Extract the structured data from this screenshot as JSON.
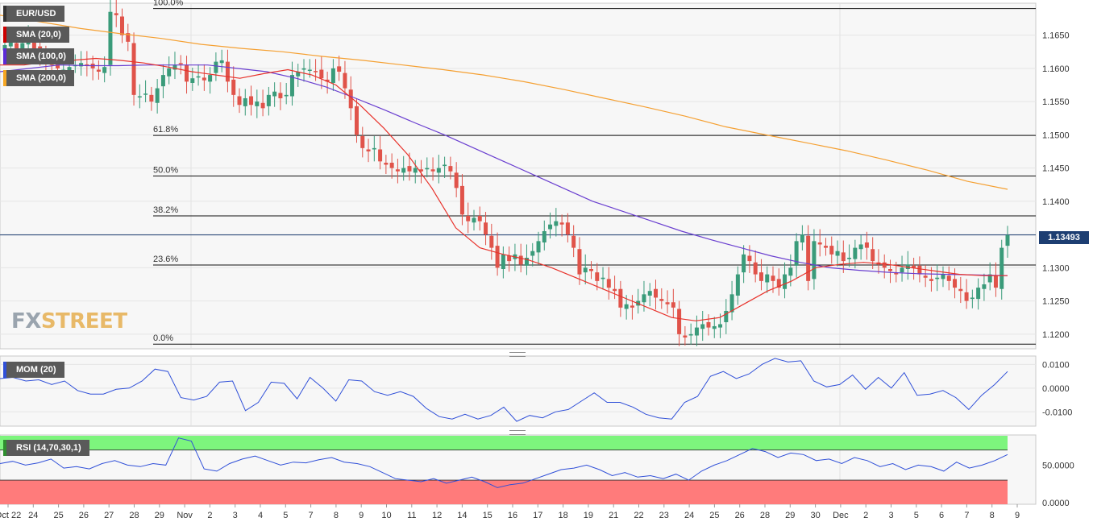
{
  "instrument": "EUR/USD",
  "legends": {
    "main": [
      "EUR/USD",
      "SMA (20,0)",
      "SMA (100,0)",
      "SMA (200,0)"
    ],
    "mom": "MOM (20)",
    "rsi": "RSI (14,70,30,1)"
  },
  "colors": {
    "legend_eurusd": "#333333",
    "legend_sma20": "#cc0000",
    "legend_sma100": "#5b2ad6",
    "legend_sma200": "#f5a623",
    "bull": "#3a9b7a",
    "bear": "#e0534a",
    "sma20": "#e8322b",
    "sma100": "#6a3fd0",
    "sma200": "#f5a032",
    "mom_line": "#2f4fd8",
    "rsi_line": "#2f4fd8",
    "rsi_overbought": "#7df57d",
    "rsi_oversold": "#ff7b7b",
    "price_tag": "#1d3e72"
  },
  "watermark": {
    "fx": "FX",
    "street": "STREET"
  },
  "current_price": "1.13493",
  "fibonacci": [
    {
      "label": "100.0%",
      "price": 1.169
    },
    {
      "label": "61.8%",
      "price": 1.1499
    },
    {
      "label": "50.0%",
      "price": 1.1438
    },
    {
      "label": "38.2%",
      "price": 1.1378
    },
    {
      "label": "23.6%",
      "price": 1.1304
    },
    {
      "label": "0.0%",
      "price": 1.1185
    }
  ],
  "x_axis_labels": [
    "Oct 22",
    "24",
    "25",
    "26",
    "27",
    "28",
    "29",
    "Nov",
    "2",
    "3",
    "4",
    "5",
    "7",
    "8",
    "9",
    "10",
    "11",
    "12",
    "14",
    "15",
    "16",
    "17",
    "18",
    "19",
    "21",
    "22",
    "23",
    "24",
    "25",
    "26",
    "28",
    "29",
    "30",
    "Dec",
    "2",
    "3",
    "5",
    "6",
    "7",
    "8",
    "9"
  ],
  "chart_data": [
    {
      "type": "candlestick",
      "title": "EUR/USD",
      "y_axis_ticks": [
        "1.1650",
        "1.1600",
        "1.1550",
        "1.1500",
        "1.1450",
        "1.1400",
        "1.1350",
        "1.1300",
        "1.1250",
        "1.1200"
      ],
      "ylim": [
        1.1178,
        1.1698
      ],
      "ohlc_path_close": [
        1.1635,
        1.164,
        1.1625,
        1.1638,
        1.1645,
        1.163,
        1.162,
        1.161,
        1.1605,
        1.16,
        1.1598,
        1.1602,
        1.1605,
        1.1608,
        1.1604,
        1.16,
        1.1595,
        1.1602,
        1.1685,
        1.168,
        1.165,
        1.164,
        1.156,
        1.1558,
        1.1562,
        1.155,
        1.157,
        1.159,
        1.16,
        1.1605,
        1.1607,
        1.158,
        1.1585,
        1.1588,
        1.1582,
        1.159,
        1.161,
        1.1612,
        1.158,
        1.156,
        1.1545,
        1.1555,
        1.1545,
        1.155,
        1.154,
        1.156,
        1.1565,
        1.1555,
        1.156,
        1.159,
        1.1595,
        1.16,
        1.1598,
        1.1595,
        1.1585,
        1.158,
        1.16,
        1.1595,
        1.157,
        1.154,
        1.15,
        1.148,
        1.1475,
        1.148,
        1.146,
        1.1455,
        1.145,
        1.1445,
        1.145,
        1.1445,
        1.145,
        1.1445,
        1.145,
        1.1445,
        1.145,
        1.1455,
        1.1445,
        1.142,
        1.138,
        1.137,
        1.1375,
        1.137,
        1.135,
        1.133,
        1.13,
        1.132,
        1.131,
        1.132,
        1.1305,
        1.1315,
        1.1325,
        1.134,
        1.1355,
        1.1365,
        1.137,
        1.1365,
        1.135,
        1.133,
        1.129,
        1.13,
        1.1295,
        1.128,
        1.1285,
        1.127,
        1.1265,
        1.124,
        1.1245,
        1.124,
        1.125,
        1.126,
        1.1265,
        1.1255,
        1.125,
        1.1245,
        1.124,
        1.12,
        1.1195,
        1.12,
        1.121,
        1.1215,
        1.121,
        1.1212,
        1.1215,
        1.1235,
        1.126,
        1.129,
        1.132,
        1.131,
        1.129,
        1.128,
        1.129,
        1.128,
        1.127,
        1.129,
        1.13,
        1.134,
        1.135,
        1.128,
        1.134,
        1.1335,
        1.133,
        1.132,
        1.1325,
        1.131,
        1.1315,
        1.133,
        1.1335,
        1.133,
        1.131,
        1.1305,
        1.13,
        1.1295,
        1.129,
        1.13,
        1.1305,
        1.13,
        1.129,
        1.1285,
        1.128,
        1.1285,
        1.129,
        1.128,
        1.127,
        1.1265,
        1.125,
        1.1255,
        1.127,
        1.1275,
        1.129,
        1.127,
        1.133,
        1.1349
      ],
      "series": [
        {
          "name": "SMA (20,0)",
          "values": [
            1.1605,
            1.1605,
            1.161,
            1.1612,
            1.1615,
            1.1612,
            1.1608,
            1.1602,
            1.1595,
            1.159,
            1.1585,
            1.1592,
            1.1598,
            1.159,
            1.1575,
            1.1545,
            1.151,
            1.147,
            1.142,
            1.136,
            1.133,
            1.132,
            1.1312,
            1.13,
            1.1285,
            1.127,
            1.1255,
            1.124,
            1.1225,
            1.122,
            1.1225,
            1.1245,
            1.1265,
            1.128,
            1.13,
            1.1305,
            1.1308,
            1.1305,
            1.13,
            1.1295,
            1.129,
            1.1288,
            1.1288
          ]
        },
        {
          "name": "SMA (100,0)",
          "values": [
            1.1595,
            1.16,
            1.1605,
            1.1604,
            1.1604,
            1.1605,
            1.1605,
            1.1605,
            1.16,
            1.1595,
            1.1585,
            1.1572,
            1.1555,
            1.1537,
            1.1518,
            1.15,
            1.148,
            1.146,
            1.144,
            1.142,
            1.14,
            1.1385,
            1.137,
            1.1355,
            1.1342,
            1.133,
            1.1318,
            1.1308,
            1.13,
            1.1296,
            1.1293,
            1.1291,
            1.129,
            1.1289,
            1.1288
          ]
        },
        {
          "name": "SMA (200,0)",
          "values": [
            1.168,
            1.167,
            1.166,
            1.1652,
            1.1645,
            1.1636,
            1.163,
            1.1625,
            1.1618,
            1.1612,
            1.1605,
            1.1598,
            1.159,
            1.158,
            1.1568,
            1.1555,
            1.1542,
            1.1528,
            1.1512,
            1.15,
            1.1488,
            1.1476,
            1.1462,
            1.1447,
            1.143,
            1.1418
          ]
        }
      ]
    },
    {
      "type": "line",
      "title": "MOM (20)",
      "y_axis_ticks": [
        "0.0100",
        "0.0000",
        "-0.0100"
      ],
      "ylim": [
        -0.016,
        0.0135
      ],
      "series": [
        {
          "name": "MOM (20)",
          "values": [
            0.004,
            0.0045,
            0.003,
            0.0035,
            0.0015,
            0.003,
            -0.001,
            -0.0025,
            -0.0025,
            -0.0005,
            0.0,
            0.003,
            0.008,
            0.007,
            -0.004,
            -0.005,
            -0.0035,
            0.0025,
            0.003,
            -0.0095,
            -0.006,
            0.0025,
            0.002,
            -0.0045,
            0.0045,
            0.0,
            -0.0055,
            0.0035,
            0.003,
            -0.0015,
            -0.003,
            -0.0015,
            -0.0035,
            -0.0085,
            -0.012,
            -0.013,
            -0.011,
            -0.013,
            -0.0115,
            -0.008,
            -0.014,
            -0.0115,
            -0.0125,
            -0.01,
            -0.009,
            -0.0055,
            -0.002,
            -0.006,
            -0.006,
            -0.008,
            -0.011,
            -0.0125,
            -0.013,
            -0.006,
            -0.0035,
            0.005,
            0.007,
            0.004,
            0.006,
            0.01,
            0.0125,
            0.011,
            0.0115,
            0.003,
            0.0005,
            0.0015,
            0.0055,
            -0.0005,
            0.0045,
            0.0,
            0.0065,
            -0.003,
            -0.0025,
            -0.001,
            -0.004,
            -0.009,
            -0.003,
            0.0015,
            0.007
          ]
        }
      ]
    },
    {
      "type": "line",
      "title": "RSI (14,70,30,1)",
      "y_axis_ticks": [
        "50.0000",
        "0.0000"
      ],
      "ylim": [
        0,
        100
      ],
      "overbought": 70,
      "oversold": 30,
      "series": [
        {
          "name": "RSI (14,70,30,1)",
          "values": [
            52,
            55,
            50,
            53,
            58,
            46,
            48,
            45,
            52,
            56,
            50,
            48,
            52,
            50,
            86,
            82,
            45,
            42,
            52,
            58,
            62,
            56,
            50,
            54,
            53,
            57,
            60,
            54,
            52,
            48,
            40,
            32,
            30,
            28,
            32,
            26,
            30,
            34,
            28,
            20,
            24,
            26,
            32,
            38,
            44,
            46,
            50,
            44,
            36,
            40,
            34,
            36,
            32,
            38,
            30,
            42,
            50,
            56,
            64,
            72,
            68,
            60,
            66,
            64,
            56,
            58,
            52,
            60,
            56,
            48,
            52,
            44,
            50,
            48,
            42,
            54,
            46,
            50,
            56,
            64
          ]
        }
      ]
    }
  ]
}
